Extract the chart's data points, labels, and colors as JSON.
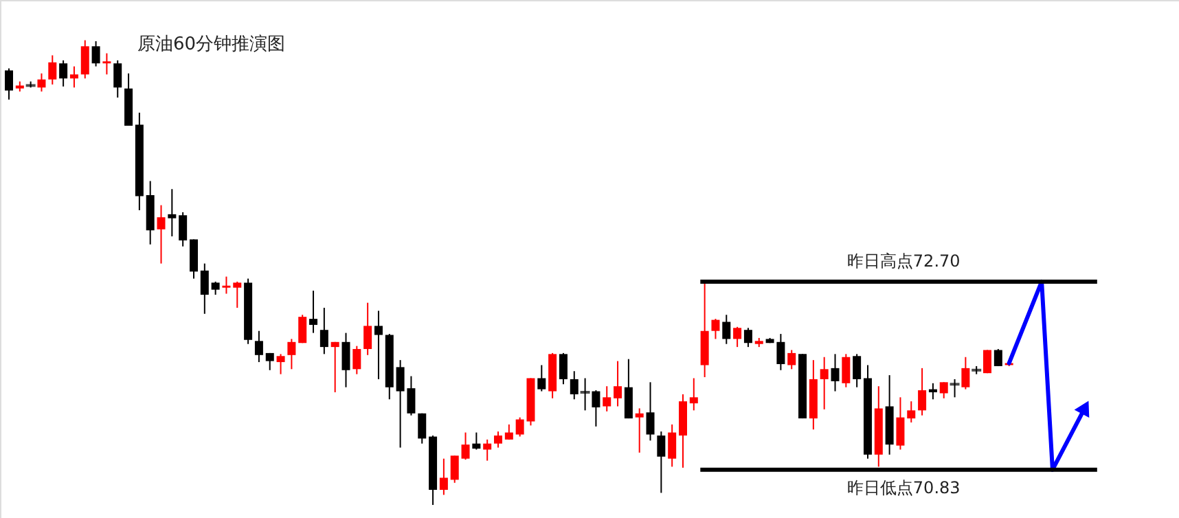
{
  "chart_data": {
    "type": "candlestick",
    "title": "原油60分钟推演图",
    "categories": [
      null,
      null,
      null,
      null,
      null,
      null,
      null,
      null,
      null,
      null,
      null,
      null,
      null,
      null,
      null,
      null,
      null,
      null,
      null,
      null,
      null,
      null,
      null,
      null,
      null,
      null,
      null,
      null,
      null,
      null,
      null,
      null,
      null,
      null,
      null,
      null,
      null,
      null,
      null,
      null,
      null,
      null,
      null,
      null,
      null,
      null,
      null,
      null,
      null,
      null,
      null,
      null,
      null,
      null,
      null,
      null,
      null,
      null,
      null,
      null,
      null,
      null,
      null,
      null,
      null,
      null,
      null,
      null,
      null,
      null,
      null,
      null,
      null,
      null,
      null,
      null,
      null,
      null,
      null,
      null,
      null,
      null,
      null,
      null,
      null,
      null,
      null,
      null,
      null,
      null,
      null,
      null,
      null,
      null,
      null,
      null,
      null,
      null,
      null,
      null
    ],
    "ohlc": [
      [
        74.8,
        74.82,
        74.51,
        74.6
      ],
      [
        74.62,
        74.69,
        74.59,
        74.65
      ],
      [
        74.65,
        74.69,
        74.63,
        74.65
      ],
      [
        74.63,
        74.77,
        74.59,
        74.71
      ],
      [
        74.71,
        74.95,
        74.66,
        74.88
      ],
      [
        74.87,
        74.9,
        74.64,
        74.72
      ],
      [
        74.72,
        74.84,
        74.63,
        74.76
      ],
      [
        74.76,
        75.1,
        74.72,
        75.04
      ],
      [
        75.04,
        75.09,
        74.84,
        74.87
      ],
      [
        74.87,
        74.97,
        74.76,
        74.89
      ],
      [
        74.87,
        74.9,
        74.53,
        74.63
      ],
      [
        74.62,
        74.77,
        74.25,
        74.25
      ],
      [
        74.26,
        74.38,
        73.41,
        73.55
      ],
      [
        73.56,
        73.7,
        73.07,
        73.21
      ],
      [
        73.22,
        73.46,
        72.88,
        73.34
      ],
      [
        73.37,
        73.62,
        73.15,
        73.33
      ],
      [
        73.36,
        73.39,
        73.05,
        73.11
      ],
      [
        73.12,
        73.12,
        72.73,
        72.8
      ],
      [
        72.81,
        72.88,
        72.38,
        72.57
      ],
      [
        72.69,
        72.7,
        72.57,
        72.62
      ],
      [
        72.64,
        72.75,
        72.58,
        72.66
      ],
      [
        72.64,
        72.7,
        72.44,
        72.69
      ],
      [
        72.69,
        72.73,
        72.08,
        72.12
      ],
      [
        72.11,
        72.21,
        71.9,
        71.97
      ],
      [
        71.99,
        71.99,
        71.82,
        71.91
      ],
      [
        71.9,
        71.98,
        71.78,
        71.96
      ],
      [
        71.97,
        72.13,
        71.83,
        72.1
      ],
      [
        72.09,
        72.37,
        72.09,
        72.35
      ],
      [
        72.33,
        72.61,
        72.19,
        72.27
      ],
      [
        72.22,
        72.44,
        71.98,
        72.05
      ],
      [
        72.05,
        72.1,
        71.6,
        72.1
      ],
      [
        72.1,
        72.19,
        71.65,
        71.82
      ],
      [
        71.83,
        72.06,
        71.78,
        72.03
      ],
      [
        72.03,
        72.49,
        71.97,
        72.26
      ],
      [
        72.26,
        72.41,
        71.73,
        72.17
      ],
      [
        72.17,
        72.18,
        71.53,
        71.65
      ],
      [
        71.85,
        71.92,
        71.05,
        71.61
      ],
      [
        71.64,
        71.76,
        71.37,
        71.39
      ],
      [
        71.39,
        71.39,
        71.09,
        71.14
      ],
      [
        71.16,
        71.17,
        70.48,
        70.63
      ],
      [
        70.63,
        70.94,
        70.58,
        70.75
      ],
      [
        70.73,
        70.97,
        70.7,
        70.97
      ],
      [
        70.94,
        71.2,
        70.93,
        71.08
      ],
      [
        71.09,
        71.2,
        71.03,
        71.04
      ],
      [
        71.03,
        71.13,
        70.92,
        71.09
      ],
      [
        71.09,
        71.21,
        71.05,
        71.17
      ],
      [
        71.13,
        71.28,
        71.13,
        71.2
      ],
      [
        71.18,
        71.35,
        71.16,
        71.33
      ],
      [
        71.31,
        71.74,
        71.27,
        71.74
      ],
      [
        71.74,
        71.87,
        71.61,
        71.63
      ],
      [
        71.61,
        71.99,
        71.54,
        71.98
      ],
      [
        71.98,
        71.99,
        71.68,
        71.73
      ],
      [
        71.73,
        71.81,
        71.53,
        71.58
      ],
      [
        71.6,
        71.74,
        71.42,
        71.6
      ],
      [
        71.61,
        71.62,
        71.26,
        71.45
      ],
      [
        71.46,
        71.66,
        71.41,
        71.55
      ],
      [
        71.54,
        71.91,
        71.46,
        71.66
      ],
      [
        71.65,
        71.93,
        71.34,
        71.34
      ],
      [
        71.35,
        71.44,
        71.0,
        71.39
      ],
      [
        71.4,
        71.7,
        71.12,
        71.18
      ],
      [
        71.17,
        71.21,
        70.6,
        70.96
      ],
      [
        70.94,
        71.28,
        70.86,
        71.2
      ],
      [
        71.17,
        71.58,
        70.85,
        71.51
      ],
      [
        71.49,
        71.74,
        71.42,
        71.55
      ],
      [
        71.87,
        72.7,
        71.75,
        72.21
      ],
      [
        72.21,
        72.33,
        72.13,
        72.32
      ],
      [
        72.3,
        72.37,
        72.08,
        72.13
      ],
      [
        72.13,
        72.25,
        72.05,
        72.24
      ],
      [
        72.22,
        72.24,
        72.05,
        72.09
      ],
      [
        72.08,
        72.14,
        72.05,
        72.11
      ],
      [
        72.13,
        72.14,
        72.09,
        72.09
      ],
      [
        72.1,
        72.18,
        71.82,
        71.88
      ],
      [
        71.87,
        72.02,
        71.83,
        71.99
      ],
      [
        71.98,
        71.98,
        71.34,
        71.34
      ],
      [
        71.34,
        71.92,
        71.23,
        71.73
      ],
      [
        71.73,
        71.95,
        71.43,
        71.83
      ],
      [
        71.84,
        71.98,
        71.61,
        71.71
      ],
      [
        71.69,
        71.98,
        71.65,
        71.95
      ],
      [
        71.96,
        71.98,
        71.65,
        71.73
      ],
      [
        71.74,
        71.87,
        70.94,
        70.98
      ],
      [
        70.98,
        71.66,
        70.86,
        71.44
      ],
      [
        71.46,
        71.77,
        70.98,
        71.08
      ],
      [
        71.07,
        71.55,
        71.03,
        71.35
      ],
      [
        71.34,
        71.51,
        71.3,
        71.42
      ],
      [
        71.42,
        71.84,
        71.37,
        71.62
      ],
      [
        71.63,
        71.69,
        71.53,
        71.6
      ],
      [
        71.59,
        71.7,
        71.54,
        71.7
      ],
      [
        71.68,
        71.73,
        71.55,
        71.68
      ],
      [
        71.65,
        71.95,
        71.63,
        71.84
      ],
      [
        71.82,
        71.86,
        71.78,
        71.82
      ],
      [
        71.79,
        72.02,
        71.79,
        72.02
      ],
      [
        72.02,
        72.03,
        71.86,
        71.86
      ],
      [
        71.87,
        71.9,
        71.86,
        71.89
      ],
      null,
      null,
      null,
      null,
      null,
      null,
      null
    ],
    "colors": [
      "#000000",
      "#ff0000",
      "#000000",
      "#ff0000",
      "#ff0000",
      "#000000",
      "#ff0000",
      "#ff0000",
      "#000000",
      "#ff0000",
      "#000000",
      "#000000",
      "#000000",
      "#000000",
      "#ff0000",
      "#000000",
      "#000000",
      "#000000",
      "#000000",
      "#000000",
      "#ff0000",
      "#ff0000",
      "#000000",
      "#000000",
      "#000000",
      "#ff0000",
      "#ff0000",
      "#ff0000",
      "#000000",
      "#000000",
      "#ff0000",
      "#000000",
      "#ff0000",
      "#ff0000",
      "#000000",
      "#000000",
      "#000000",
      "#000000",
      "#000000",
      "#000000",
      "#ff0000",
      "#ff0000",
      "#ff0000",
      "#000000",
      "#ff0000",
      "#ff0000",
      "#ff0000",
      "#ff0000",
      "#ff0000",
      "#000000",
      "#ff0000",
      "#000000",
      "#000000",
      "#000000",
      "#000000",
      "#ff0000",
      "#ff0000",
      "#000000",
      "#ff0000",
      "#000000",
      "#000000",
      "#ff0000",
      "#ff0000",
      "#ff0000",
      "#ff0000",
      "#ff0000",
      "#000000",
      "#ff0000",
      "#000000",
      "#ff0000",
      "#000000",
      "#000000",
      "#ff0000",
      "#000000",
      "#ff0000",
      "#ff0000",
      "#000000",
      "#ff0000",
      "#000000",
      "#000000",
      "#ff0000",
      "#000000",
      "#ff0000",
      "#ff0000",
      "#ff0000",
      "#000000",
      "#ff0000",
      "#000000",
      "#ff0000",
      "#000000",
      "#ff0000",
      "#000000",
      "#ff0000",
      null,
      null,
      null,
      null,
      null,
      null,
      null
    ],
    "series": [
      {
        "type": "line",
        "color": "#0000ff",
        "values": [
          null,
          null,
          null,
          null,
          null,
          null,
          null,
          null,
          null,
          null,
          null,
          null,
          null,
          null,
          null,
          null,
          null,
          null,
          null,
          null,
          null,
          null,
          null,
          null,
          null,
          null,
          null,
          null,
          null,
          null,
          null,
          null,
          null,
          null,
          null,
          null,
          null,
          null,
          null,
          null,
          null,
          null,
          null,
          null,
          null,
          null,
          null,
          null,
          null,
          null,
          null,
          null,
          null,
          null,
          null,
          null,
          null,
          null,
          null,
          null,
          null,
          null,
          null,
          null,
          null,
          null,
          null,
          null,
          null,
          null,
          null,
          null,
          null,
          null,
          null,
          null,
          null,
          null,
          null,
          null,
          null,
          null,
          null,
          null,
          null,
          null,
          null,
          null,
          null,
          null,
          null,
          null,
          71.89,
          null,
          null,
          72.7,
          70.83,
          null,
          null,
          71.45
        ]
      }
    ],
    "ylim": [
      70.35,
      75.5
    ],
    "tick_labels": false,
    "ref_lines": [
      {
        "axis": "y",
        "value": 72.7,
        "label": "昨日高点72.70",
        "color": "#000000"
      },
      {
        "axis": "y",
        "value": 70.83,
        "label": "昨日低点70.83",
        "color": "#000000"
      }
    ]
  }
}
